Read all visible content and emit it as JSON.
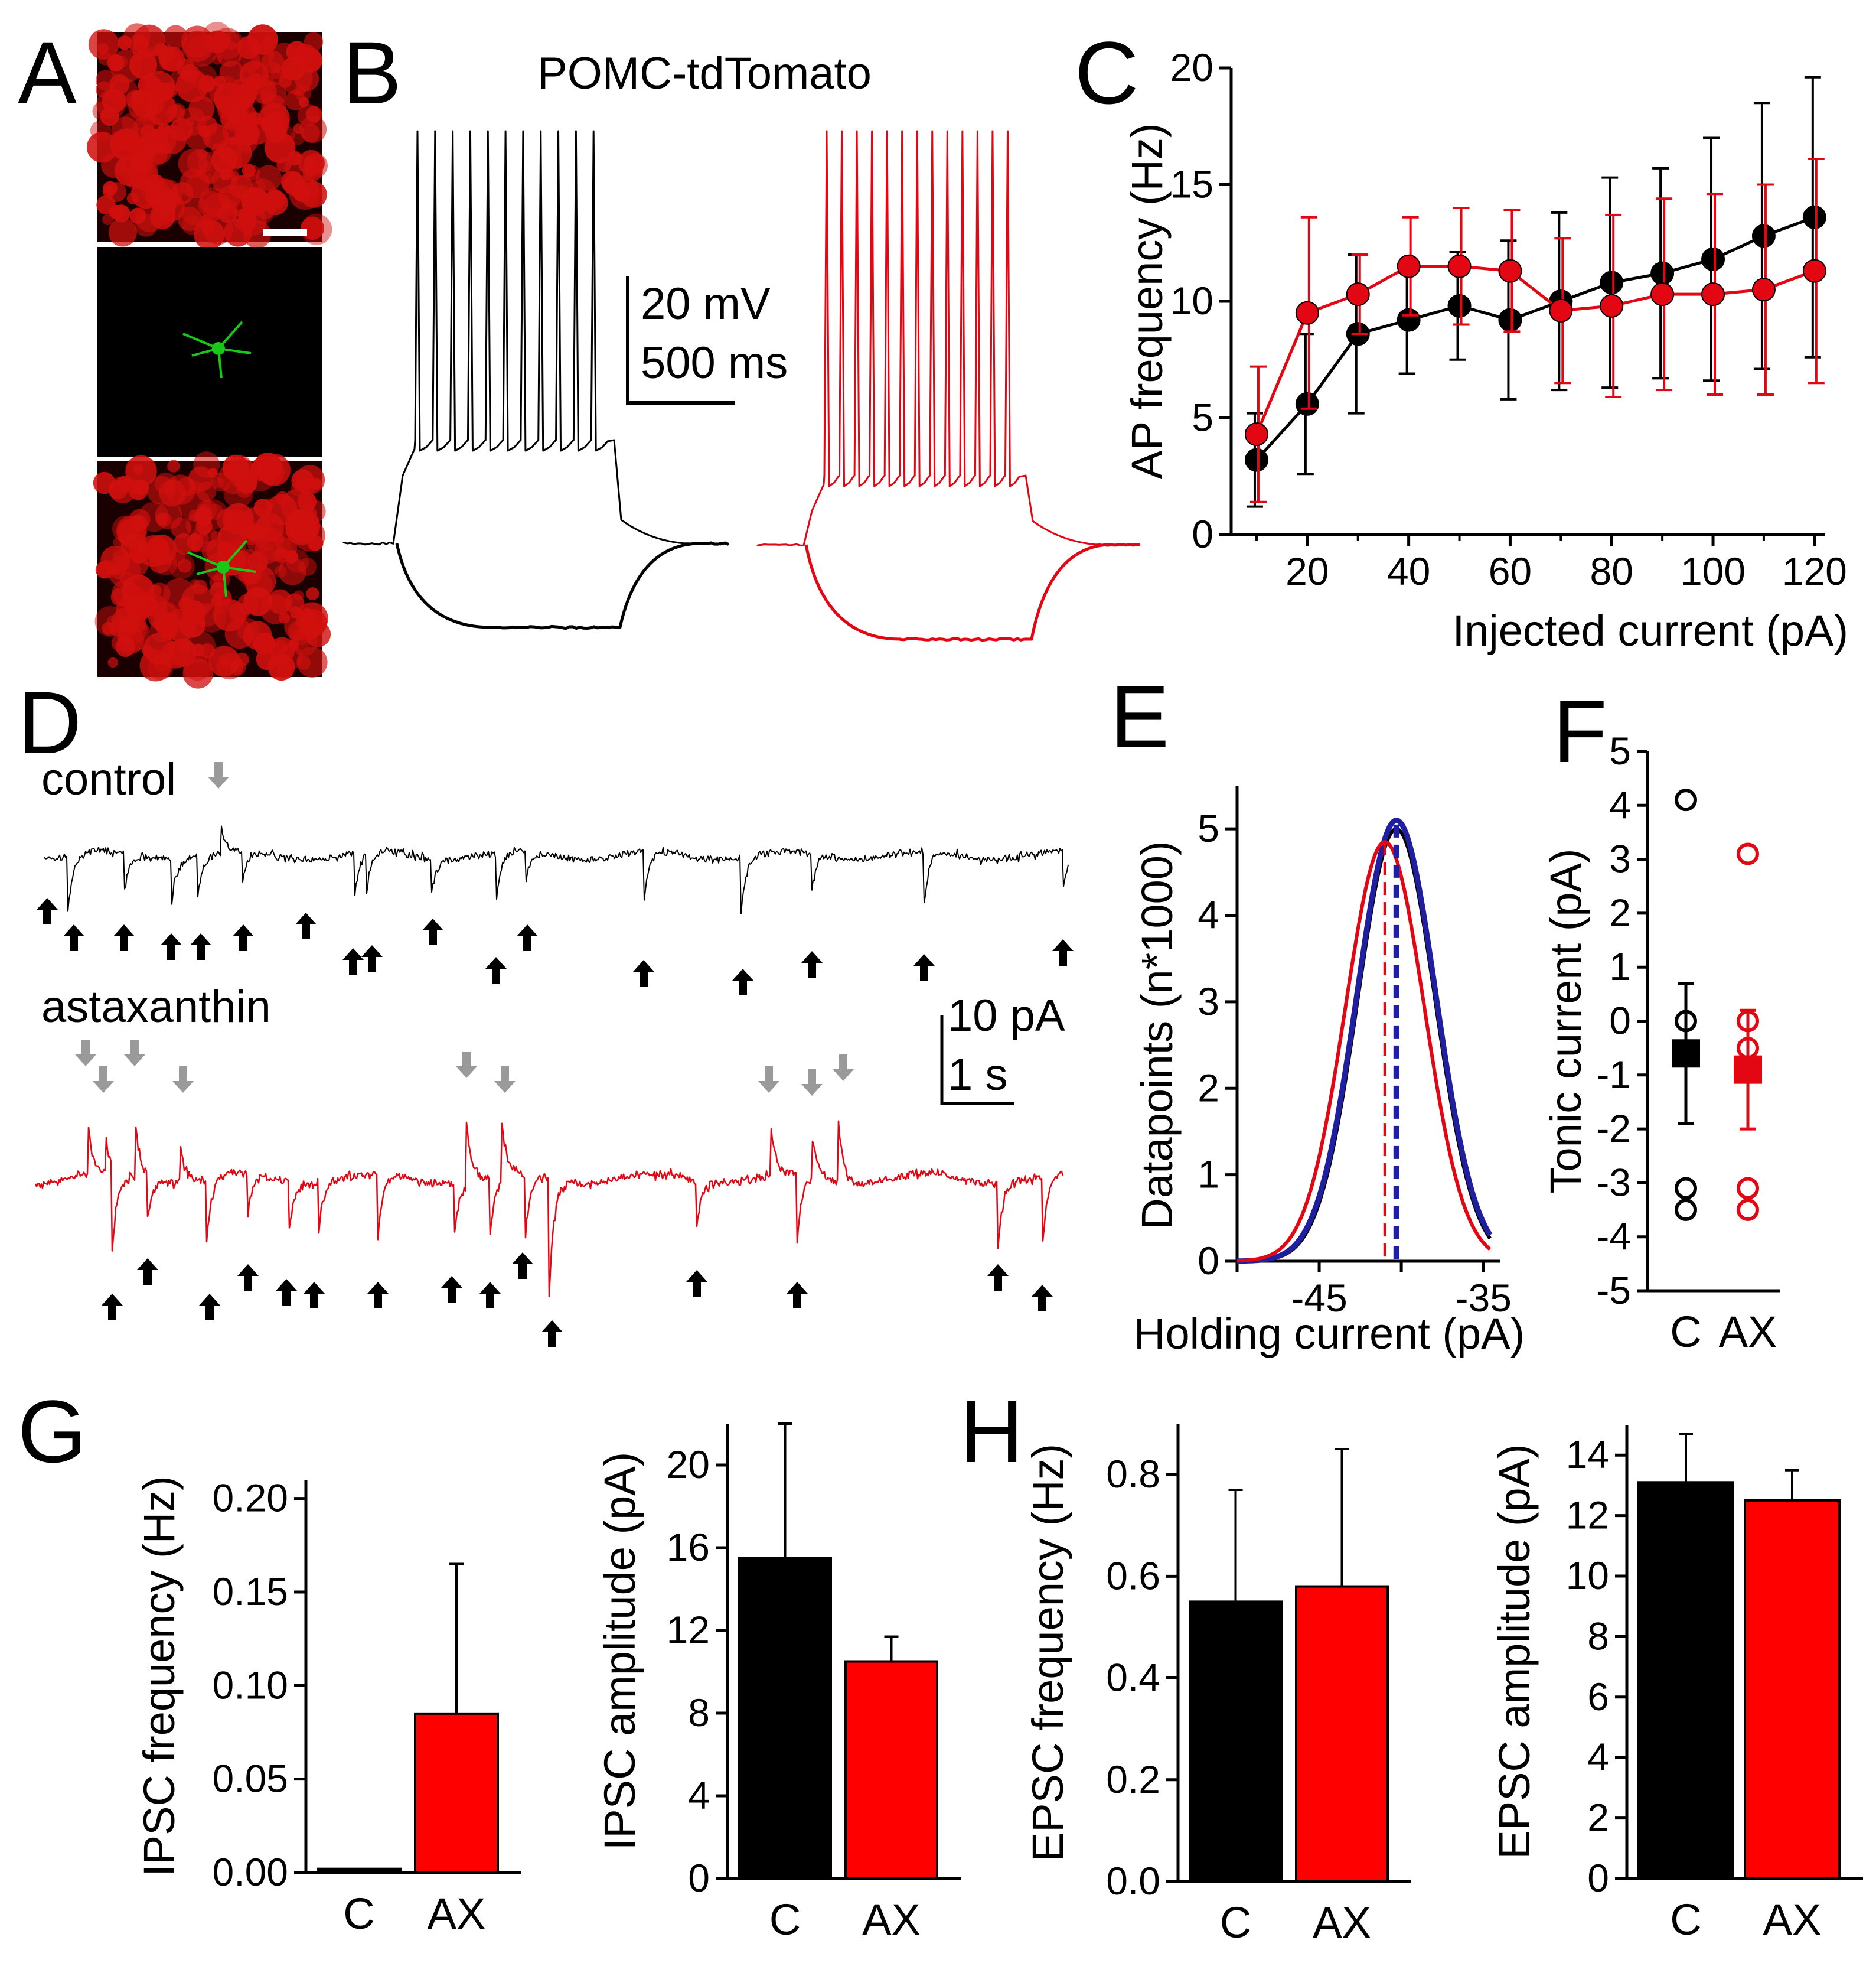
{
  "panels": {
    "a": {
      "label": "A"
    },
    "b": {
      "label": "B",
      "title": "POMC-tdTomato",
      "scale_mv": "20 mV",
      "scale_ms": "500 ms"
    },
    "c": {
      "label": "C"
    },
    "d": {
      "label": "D",
      "control": "control",
      "astaxanthin": "astaxanthin",
      "scale_pa": "10 pA",
      "scale_s": "1 s"
    },
    "e": {
      "label": "E"
    },
    "f": {
      "label": "F"
    },
    "g": {
      "label": "G"
    },
    "h": {
      "label": "H"
    }
  },
  "colors": {
    "control": "#000000",
    "ax": "#e30613",
    "ax_fill": "#ff0000",
    "blue": "#1f1fa0",
    "image_red": "#d0100e",
    "image_green": "#18c818",
    "arrow_gray": "#9a9a9a"
  },
  "chart_data": [
    {
      "id": "c",
      "type": "line",
      "xlabel": "Injected current (pA)",
      "ylabel": "AP frequency (Hz)",
      "xlim": [
        5,
        122
      ],
      "ylim": [
        0,
        20
      ],
      "xticks": [
        20,
        40,
        60,
        80,
        100,
        120
      ],
      "yticks": [
        0,
        5,
        10,
        15,
        20
      ],
      "x": [
        10,
        20,
        30,
        40,
        50,
        60,
        70,
        80,
        90,
        100,
        110,
        120
      ],
      "series": [
        {
          "color": "#000000",
          "values": [
            3.2,
            5.6,
            8.6,
            9.2,
            9.8,
            9.2,
            10.0,
            10.8,
            11.2,
            11.8,
            12.8,
            13.6
          ],
          "err": [
            2.0,
            3.0,
            3.4,
            2.3,
            2.3,
            3.4,
            3.8,
            4.5,
            4.5,
            5.2,
            5.7,
            6.0
          ]
        },
        {
          "color": "#e30613",
          "values": [
            4.3,
            9.5,
            10.3,
            11.5,
            11.5,
            11.3,
            9.6,
            9.8,
            10.3,
            10.3,
            10.5,
            11.3
          ],
          "err": [
            2.9,
            4.1,
            1.7,
            2.1,
            2.5,
            2.6,
            3.1,
            3.9,
            4.1,
            4.3,
            4.5,
            4.8
          ]
        }
      ]
    },
    {
      "id": "e",
      "type": "line",
      "xlabel": "Holding current (pA)",
      "ylabel": "Datapoints (n*1000)",
      "xlim": [
        -50,
        -34
      ],
      "ylim": [
        0,
        5.5
      ],
      "xticks": [
        -45,
        -35
      ],
      "yticks": [
        0,
        1,
        2,
        3,
        4,
        5
      ],
      "series": [
        {
          "color": "#000000",
          "mean": -40.3,
          "sd": 2.35,
          "peak": 5.0
        },
        {
          "color": "#1f1fa0",
          "mean": -40.3,
          "sd": 2.4,
          "peak": 5.1
        },
        {
          "color": "#e30613",
          "mean": -41.0,
          "sd": 2.4,
          "peak": 4.85
        }
      ],
      "dashed_lines": [
        -41.0,
        -40.3
      ]
    },
    {
      "id": "f",
      "type": "scatter",
      "ylabel": "Tonic current (pA)",
      "categories": [
        "C",
        "AX"
      ],
      "ylim": [
        -5,
        5
      ],
      "yticks": [
        5,
        4,
        3,
        2,
        1,
        0,
        -1,
        -2,
        -3,
        -4,
        -5
      ],
      "points": [
        [
          4.1,
          0.0,
          -3.1,
          -3.5
        ],
        [
          3.1,
          0.0,
          -0.5,
          -3.1,
          -3.5
        ]
      ],
      "mean": [
        -0.6,
        -0.9
      ],
      "err": [
        1.3,
        1.1
      ]
    },
    {
      "id": "g1",
      "type": "bar",
      "ylabel": "IPSC frequency (Hz)",
      "categories": [
        "C",
        "AX"
      ],
      "values": [
        0.002,
        0.085
      ],
      "err": [
        0.0,
        0.08
      ],
      "ylim": [
        0,
        0.21
      ],
      "yticks": [
        "0.00",
        "0.05",
        "0.10",
        "0.15",
        "0.20"
      ]
    },
    {
      "id": "g2",
      "type": "bar",
      "ylabel": "IPSC amplitude (pA)",
      "categories": [
        "C",
        "AX"
      ],
      "values": [
        15.5,
        10.5
      ],
      "err": [
        6.5,
        1.2
      ],
      "ylim": [
        0,
        22
      ],
      "yticks": [
        "0",
        "4",
        "8",
        "12",
        "16",
        "20"
      ]
    },
    {
      "id": "h1",
      "type": "bar",
      "ylabel": "EPSC frequency (Hz)",
      "categories": [
        "C",
        "AX"
      ],
      "values": [
        0.55,
        0.58
      ],
      "err": [
        0.22,
        0.27
      ],
      "ylim": [
        0,
        0.9
      ],
      "yticks": [
        "0.0",
        "0.2",
        "0.4",
        "0.6",
        "0.8"
      ]
    },
    {
      "id": "h2",
      "type": "bar",
      "ylabel": "EPSC amplitude (pA)",
      "categories": [
        "C",
        "AX"
      ],
      "values": [
        13.1,
        12.5
      ],
      "err": [
        1.6,
        1.0
      ],
      "ylim": [
        0,
        15
      ],
      "yticks": [
        "0",
        "2",
        "4",
        "6",
        "8",
        "10",
        "12",
        "14"
      ]
    }
  ]
}
